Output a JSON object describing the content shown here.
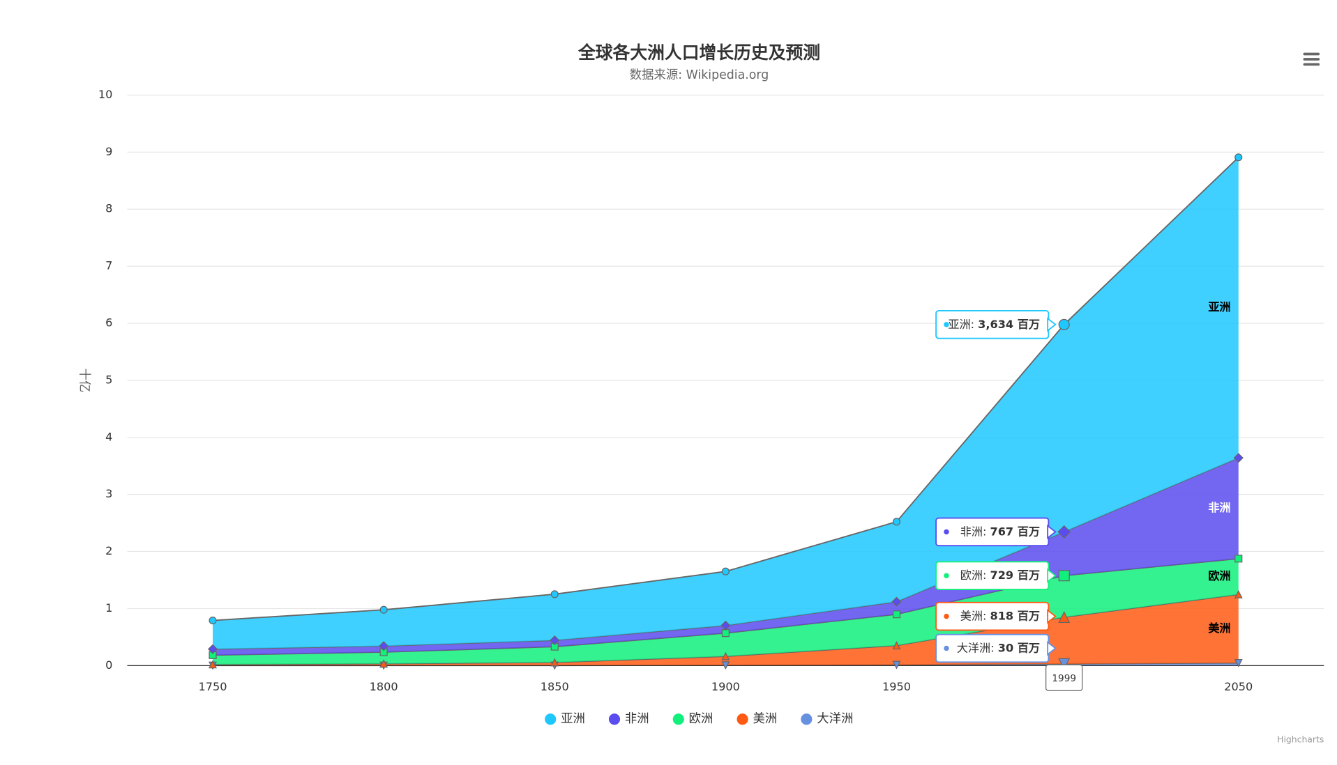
{
  "chart_data": {
    "type": "area",
    "stacked": true,
    "title": "全球各大洲人口增长历史及预测",
    "subtitle": "数据来源: Wikipedia.org",
    "y_axis_label": "十亿",
    "credits": "Highcharts",
    "x": [
      1750,
      1800,
      1850,
      1900,
      1950,
      1999,
      2050
    ],
    "xlim": [
      1725,
      2075
    ],
    "xticks": [
      1750,
      1800,
      1850,
      1900,
      1950,
      2000,
      2050
    ],
    "xtick_labels_shown": [
      1750,
      1800,
      1850,
      1900,
      1950,
      2050
    ],
    "ylim": [
      0,
      10
    ],
    "yticks": [
      0,
      1,
      2,
      3,
      4,
      5,
      6,
      7,
      8,
      9,
      10
    ],
    "grid": true,
    "legend": "bottom",
    "series": [
      {
        "name": "亚洲",
        "color": "#1ec8ff",
        "marker": "circle",
        "label_color": "#000000",
        "values": [
          0.502,
          0.635,
          0.809,
          0.947,
          1.402,
          3.634,
          5.268
        ],
        "value_labels": [
          null,
          null,
          null,
          null,
          null,
          "3,634 百万",
          null
        ]
      },
      {
        "name": "非洲",
        "color": "#5b4cf0",
        "marker": "diamond",
        "label_color": "#ffffff",
        "values": [
          0.106,
          0.107,
          0.111,
          0.133,
          0.221,
          0.767,
          1.766
        ],
        "value_labels": [
          null,
          null,
          null,
          null,
          null,
          "767 百万",
          null
        ]
      },
      {
        "name": "欧洲",
        "color": "#12f07c",
        "marker": "square",
        "label_color": "#000000",
        "values": [
          0.163,
          0.203,
          0.276,
          0.408,
          0.547,
          0.729,
          0.628
        ],
        "value_labels": [
          null,
          null,
          null,
          null,
          null,
          "729 百万",
          null
        ]
      },
      {
        "name": "美洲",
        "color": "#ff5a14",
        "marker": "triangle",
        "label_color": "#000000",
        "values": [
          0.018,
          0.031,
          0.054,
          0.156,
          0.339,
          0.818,
          1.201
        ],
        "value_labels": [
          null,
          null,
          null,
          null,
          null,
          "818 百万",
          null
        ]
      },
      {
        "name": "大洋洲",
        "color": "#6690e0",
        "marker": "triangle-down",
        "label_color": "#000000",
        "values": [
          0.002,
          0.002,
          0.002,
          0.006,
          0.013,
          0.03,
          0.046
        ],
        "value_labels": [
          null,
          null,
          null,
          null,
          null,
          "30 百万",
          null
        ]
      }
    ]
  }
}
